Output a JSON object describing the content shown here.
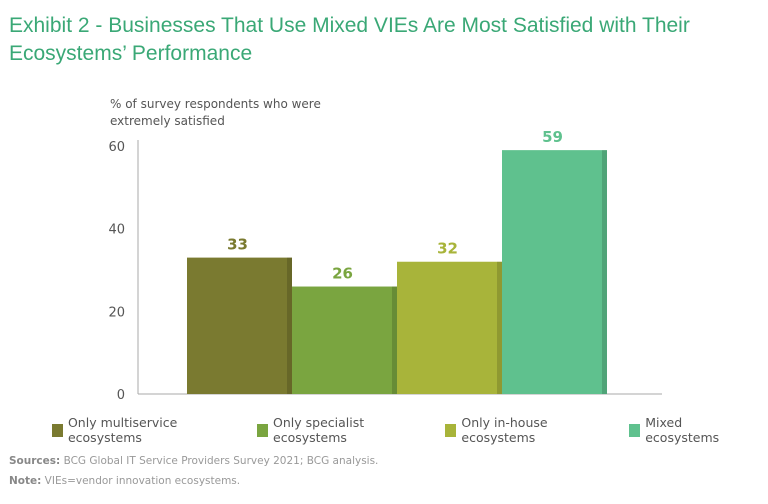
{
  "chart_data": {
    "type": "bar",
    "title": "Exhibit 2 - Businesses That Use Mixed VIEs Are Most Satisfied with Their Ecosystems’ Performance",
    "ylabel": "% of survey respondents who were extremely satisfied",
    "xlabel": "",
    "ylim": [
      0,
      60
    ],
    "yticks": [
      0,
      20,
      40,
      60
    ],
    "grid": false,
    "legend_position": "bottom",
    "categories": [
      "Only multiservice ecosystems",
      "Only specialist ecosystems",
      "Only in-house ecosystems",
      "Mixed ecosystems"
    ],
    "values": [
      33,
      26,
      32,
      59
    ],
    "colors": [
      "#7a7a30",
      "#7aa540",
      "#a8b43a",
      "#5fc18e"
    ]
  },
  "footer": {
    "sources_label": "Sources:",
    "sources": " BCG Global IT Service Providers Survey 2021; BCG analysis.",
    "note_label": "Note:",
    "note": " VIEs=vendor innovation ecosystems."
  }
}
